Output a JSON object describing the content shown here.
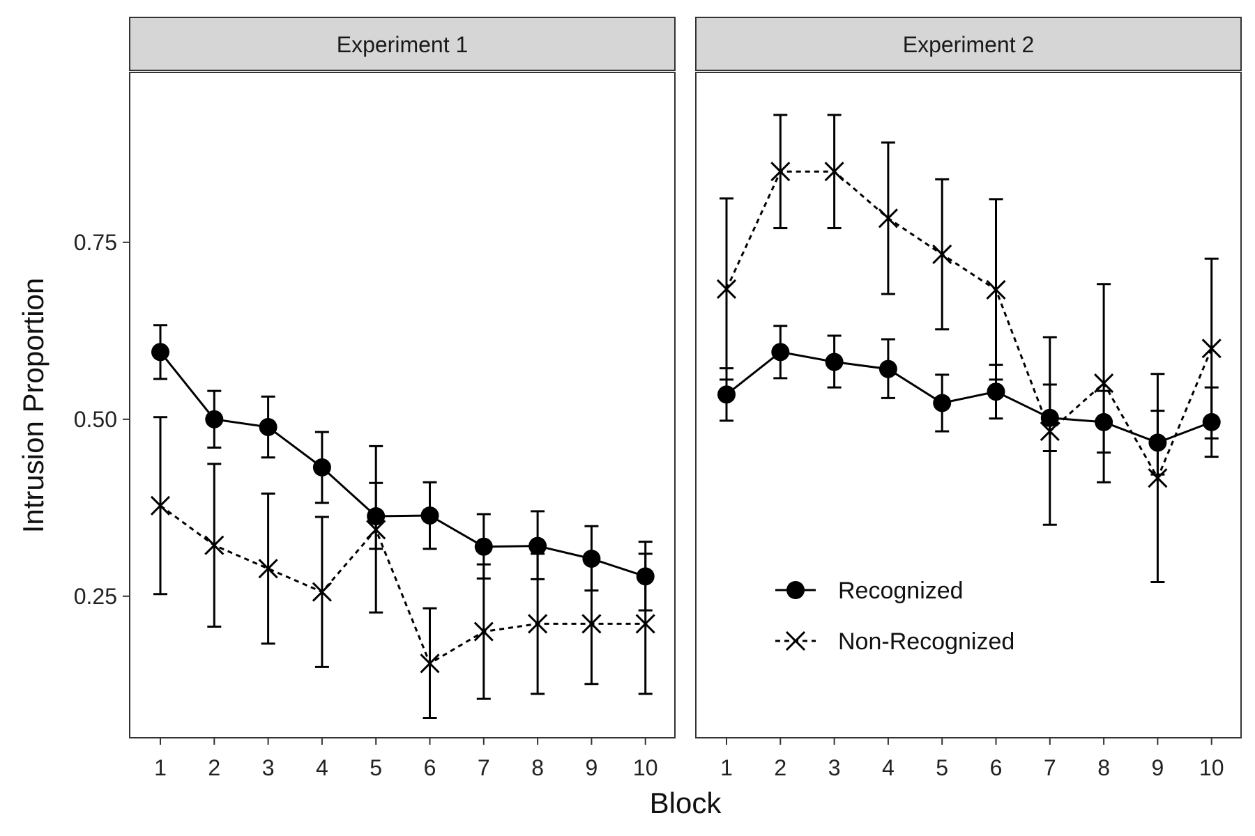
{
  "chart_data": {
    "type": "line",
    "xlabel": "Block",
    "ylabel": "Intrusion Proportion",
    "ylim": [
      0.05,
      0.99
    ],
    "yticks": [
      0.25,
      0.5,
      0.75
    ],
    "ytick_labels": [
      "0.25",
      "0.50",
      "0.75"
    ],
    "x": [
      1,
      2,
      3,
      4,
      5,
      6,
      7,
      8,
      9,
      10
    ],
    "xtick_labels": [
      "1",
      "2",
      "3",
      "4",
      "5",
      "6",
      "7",
      "8",
      "9",
      "10"
    ],
    "grid": false,
    "legend": {
      "placement": "inside-bottom-right",
      "entries": [
        {
          "label": "Recognized",
          "marker": "filled-circle",
          "line": "solid"
        },
        {
          "label": "Non-Recognized",
          "marker": "cross",
          "line": "dashed"
        }
      ]
    },
    "panels": [
      {
        "title": "Experiment 1",
        "series": [
          {
            "name": "Recognized",
            "values": [
              0.595,
              0.5,
              0.489,
              0.432,
              0.363,
              0.364,
              0.32,
              0.321,
              0.303,
              0.278
            ],
            "lower": [
              0.557,
              0.46,
              0.446,
              0.382,
              0.317,
              0.317,
              0.275,
              0.274,
              0.258,
              0.23
            ],
            "upper": [
              0.633,
              0.54,
              0.532,
              0.482,
              0.41,
              0.411,
              0.366,
              0.37,
              0.349,
              0.327
            ]
          },
          {
            "name": "Non-Recognized",
            "values": [
              0.378,
              0.322,
              0.289,
              0.256,
              0.344,
              0.155,
              0.2,
              0.211,
              0.211,
              0.211
            ],
            "lower": [
              0.253,
              0.207,
              0.183,
              0.15,
              0.227,
              0.078,
              0.105,
              0.112,
              0.126,
              0.112
            ],
            "upper": [
              0.503,
              0.437,
              0.395,
              0.362,
              0.462,
              0.233,
              0.295,
              0.31,
              0.296,
              0.31
            ]
          }
        ]
      },
      {
        "title": "Experiment 2",
        "series": [
          {
            "name": "Recognized",
            "values": [
              0.535,
              0.595,
              0.581,
              0.571,
              0.523,
              0.539,
              0.502,
              0.496,
              0.467,
              0.496
            ],
            "lower": [
              0.498,
              0.558,
              0.545,
              0.53,
              0.483,
              0.501,
              0.455,
              0.453,
              0.422,
              0.447
            ],
            "upper": [
              0.572,
              0.632,
              0.618,
              0.613,
              0.563,
              0.577,
              0.549,
              0.54,
              0.512,
              0.545
            ]
          },
          {
            "name": "Non-Recognized",
            "values": [
              0.684,
              0.85,
              0.85,
              0.784,
              0.733,
              0.683,
              0.483,
              0.551,
              0.417,
              0.6
            ],
            "lower": [
              0.556,
              0.77,
              0.77,
              0.677,
              0.627,
              0.556,
              0.351,
              0.411,
              0.27,
              0.473
            ],
            "upper": [
              0.812,
              0.93,
              0.93,
              0.891,
              0.839,
              0.811,
              0.616,
              0.691,
              0.564,
              0.727
            ]
          }
        ]
      }
    ]
  }
}
